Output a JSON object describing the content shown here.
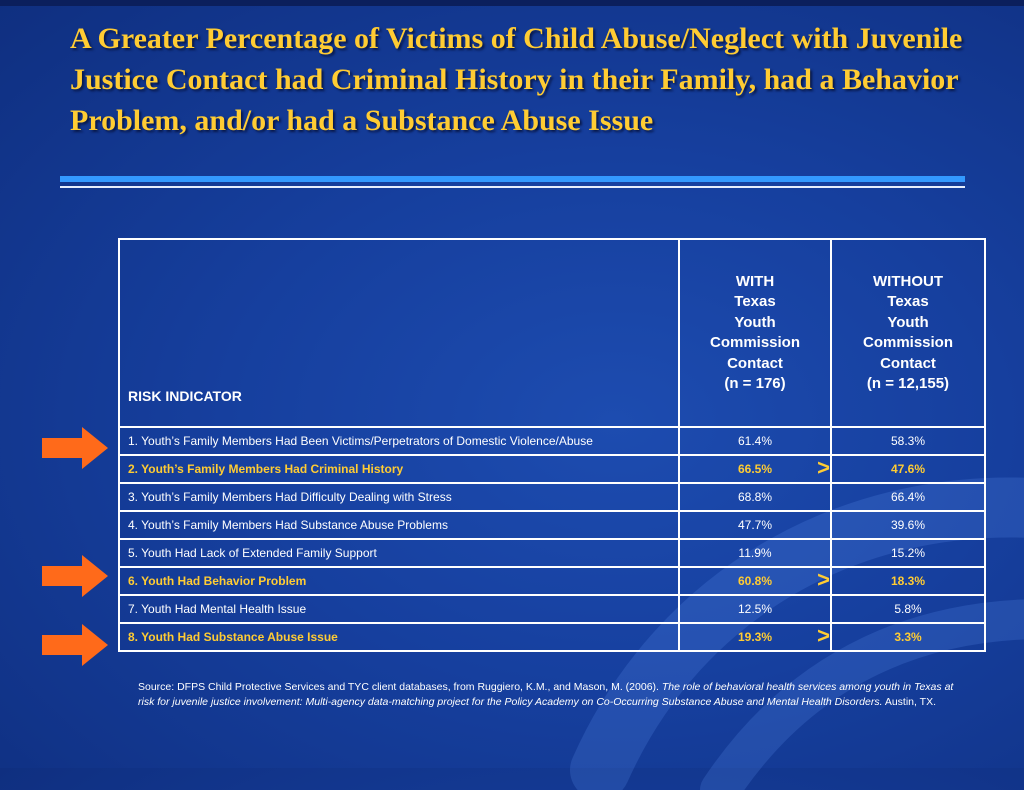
{
  "title": "A Greater Percentage of Victims of Child Abuse/Neglect with Juvenile Justice Contact had Criminal History in their Family, had a Behavior Problem, and/or had a Substance Abuse Issue",
  "table": {
    "header": {
      "risk": "RISK INDICATOR",
      "with": [
        "WITH",
        "Texas",
        "Youth",
        "Commission",
        "Contact",
        "(n = 176)"
      ],
      "without": [
        "WITHOUT",
        "Texas",
        "Youth",
        "Commission",
        "Contact",
        "(n = 12,155)"
      ]
    },
    "rows": [
      {
        "label": "1.  Youth’s Family Members Had Been Victims/Perpetrators of Domestic Violence/Abuse",
        "with": "61.4%",
        "without": "58.3%"
      },
      {
        "label": "2.  Youth’s Family Members Had Criminal History",
        "with": "66.5%",
        "without": "47.6%",
        "marker": ">"
      },
      {
        "label": "3.  Youth’s Family Members Had Difficulty Dealing with Stress",
        "with": "68.8%",
        "without": "66.4%"
      },
      {
        "label": "4.  Youth’s Family Members Had Substance Abuse Problems",
        "with": "47.7%",
        "without": "39.6%"
      },
      {
        "label": "5.  Youth Had Lack of Extended Family Support",
        "with": "11.9%",
        "without": "15.2%"
      },
      {
        "label": "6.  Youth Had Behavior Problem",
        "with": "60.8%",
        "without": "18.3%",
        "marker": ">"
      },
      {
        "label": "7.  Youth Had Mental Health Issue",
        "with": "12.5%",
        "without": "5.8%"
      },
      {
        "label": "8.  Youth Had Substance Abuse Issue",
        "with": "19.3%",
        "without": "3.3%",
        "marker": ">"
      }
    ]
  },
  "source": {
    "prefix": "Source: DFPS Child Protective Services and TYC client databases, from Ruggiero, K.M., and Mason, M. (2006). ",
    "italic": "The role of behavioral health services among youth in Texas at risk for juvenile justice involvement: Multi-agency data-matching project for the Policy Academy on Co-Occurring Substance Abuse and Mental Health Disorders.",
    "suffix": " Austin, TX."
  },
  "colors": {
    "background": "#163f9e",
    "title": "#ffcc33",
    "highlight": "#ffcc33",
    "arrow": "#ff6a1a",
    "rule": "#3399ff"
  },
  "icons": [
    "arrow-right-icon"
  ]
}
